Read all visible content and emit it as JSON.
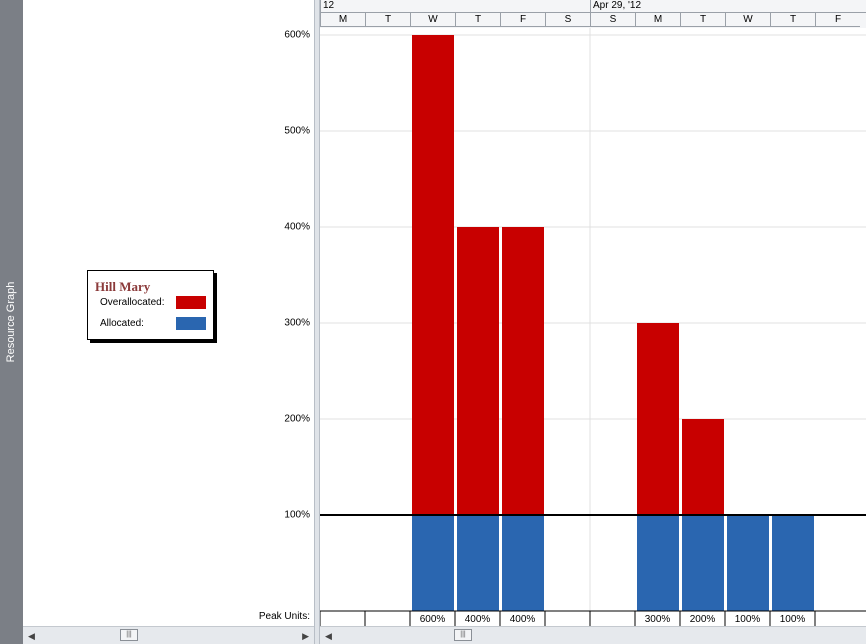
{
  "sidebar": {
    "label": "Resource Graph"
  },
  "legend": {
    "resource_name": "Hill Mary",
    "overallocated_label": "Overallocated:",
    "allocated_label": "Allocated:",
    "overallocated_color": "#c80000",
    "allocated_color": "#2a66b0"
  },
  "peak_units_label": "Peak Units:",
  "timescale": {
    "top_tiers": [
      "12",
      "Apr 29, '12"
    ],
    "days": [
      "M",
      "T",
      "W",
      "T",
      "F",
      "S",
      "S",
      "M",
      "T",
      "W",
      "T",
      "F"
    ]
  },
  "chart_data": {
    "type": "bar",
    "categories": [
      "M",
      "T",
      "W",
      "T",
      "F",
      "S",
      "S",
      "M",
      "T",
      "W",
      "T",
      "F"
    ],
    "y_tick_labels": [
      "100%",
      "200%",
      "300%",
      "400%",
      "500%",
      "600%"
    ],
    "ylim": [
      0,
      600
    ],
    "max_units_line": 100,
    "series": [
      {
        "name": "Allocated",
        "values": [
          0,
          0,
          100,
          100,
          100,
          0,
          0,
          100,
          100,
          100,
          100,
          0
        ]
      },
      {
        "name": "Overallocated",
        "values": [
          0,
          0,
          500,
          300,
          300,
          0,
          0,
          200,
          100,
          0,
          0,
          0
        ]
      }
    ],
    "peak_units": [
      "",
      "",
      "600%",
      "400%",
      "400%",
      "",
      "",
      "300%",
      "200%",
      "100%",
      "100%",
      ""
    ]
  }
}
